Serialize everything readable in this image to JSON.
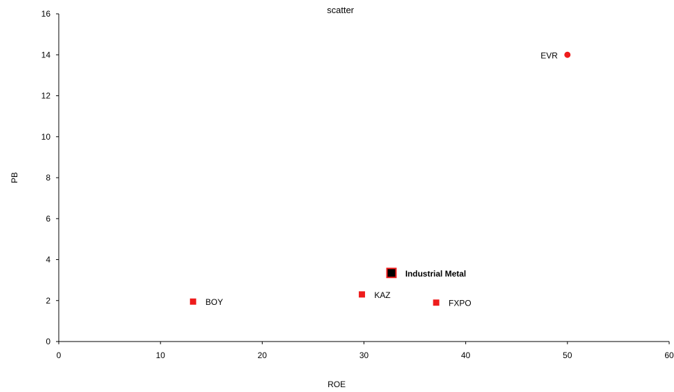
{
  "chart_data": {
    "type": "scatter",
    "title": "scatter",
    "xlabel": "ROE",
    "ylabel": "PB",
    "xlim": [
      0,
      60
    ],
    "ylim": [
      0,
      16
    ],
    "x_ticks": [
      0,
      10,
      20,
      30,
      40,
      50,
      60
    ],
    "y_ticks": [
      0,
      2,
      4,
      6,
      8,
      10,
      12,
      14,
      16
    ],
    "grid": false,
    "points": [
      {
        "label": "EVR",
        "x": 50,
        "y": 14,
        "marker": "circle",
        "color": "#ee1c1c",
        "label_side": "left",
        "highlight": false
      },
      {
        "label": "BOY",
        "x": 13.2,
        "y": 1.95,
        "marker": "square",
        "color": "#ee1c1c",
        "label_side": "right",
        "highlight": false
      },
      {
        "label": "KAZ",
        "x": 29.8,
        "y": 2.3,
        "marker": "square",
        "color": "#ee1c1c",
        "label_side": "right",
        "highlight": false
      },
      {
        "label": "FXPO",
        "x": 37.1,
        "y": 1.9,
        "marker": "square",
        "color": "#ee1c1c",
        "label_side": "right",
        "highlight": false
      },
      {
        "label": "Industrial Metal",
        "x": 32.7,
        "y": 3.35,
        "marker": "square",
        "color": "#000000",
        "edge_color": "#ee1c1c",
        "label_side": "right",
        "highlight": true
      }
    ]
  }
}
